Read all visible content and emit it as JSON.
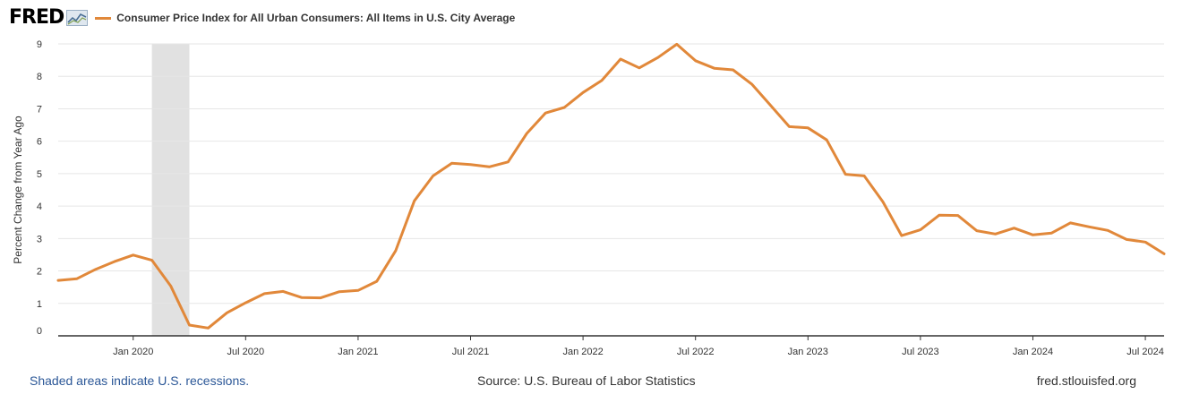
{
  "header": {
    "logo_text": "FRED",
    "logo_icon": "line-graph-icon",
    "legend_label": "Consumer Price Index for All Urban Consumers: All Items in U.S. City Average"
  },
  "footer": {
    "recession_note": "Shaded areas indicate U.S. recessions.",
    "source": "Source: U.S. Bureau of Labor Statistics",
    "site": "fred.stlouisfed.org"
  },
  "colors": {
    "series": "#e1883a",
    "recession": "#e1e1e1",
    "grid": "#e6e6e6",
    "axis": "#333333"
  },
  "chart_data": {
    "type": "line",
    "ylabel": "Percent Change from Year Ago",
    "ylim": [
      0,
      9
    ],
    "y_ticks": [
      0,
      1,
      2,
      3,
      4,
      5,
      6,
      7,
      8,
      9
    ],
    "x_ticks": [
      "Jan 2020",
      "Jul 2020",
      "Jan 2021",
      "Jul 2021",
      "Jan 2022",
      "Jul 2022",
      "Jan 2023",
      "Jul 2023",
      "Jan 2024",
      "Jul 2024"
    ],
    "grid": true,
    "recession_shading": {
      "start": "2020-02",
      "end": "2020-04"
    },
    "series": [
      {
        "x": [
          "2019-09",
          "2019-10",
          "2019-11",
          "2019-12",
          "2020-01",
          "2020-02",
          "2020-03",
          "2020-04",
          "2020-05",
          "2020-06",
          "2020-07",
          "2020-08",
          "2020-09",
          "2020-10",
          "2020-11",
          "2020-12",
          "2021-01",
          "2021-02",
          "2021-03",
          "2021-04",
          "2021-05",
          "2021-06",
          "2021-07",
          "2021-08",
          "2021-09",
          "2021-10",
          "2021-11",
          "2021-12",
          "2022-01",
          "2022-02",
          "2022-03",
          "2022-04",
          "2022-05",
          "2022-06",
          "2022-07",
          "2022-08",
          "2022-09",
          "2022-10",
          "2022-11",
          "2022-12",
          "2023-01",
          "2023-02",
          "2023-03",
          "2023-04",
          "2023-05",
          "2023-06",
          "2023-07",
          "2023-08",
          "2023-09",
          "2023-10",
          "2023-11",
          "2023-12",
          "2024-01",
          "2024-02",
          "2024-03",
          "2024-04",
          "2024-05",
          "2024-06",
          "2024-07",
          "2024-08"
        ],
        "values": [
          1.71,
          1.76,
          2.05,
          2.29,
          2.49,
          2.33,
          1.54,
          0.33,
          0.24,
          0.71,
          1.02,
          1.3,
          1.37,
          1.18,
          1.17,
          1.36,
          1.4,
          1.68,
          2.62,
          4.16,
          4.93,
          5.32,
          5.28,
          5.21,
          5.36,
          6.24,
          6.87,
          7.04,
          7.5,
          7.87,
          8.53,
          8.26,
          8.58,
          8.99,
          8.48,
          8.25,
          8.2,
          7.76,
          7.11,
          6.45,
          6.41,
          6.04,
          4.98,
          4.93,
          4.13,
          3.09,
          3.27,
          3.72,
          3.71,
          3.24,
          3.14,
          3.32,
          3.11,
          3.17,
          3.48,
          3.36,
          3.25,
          2.97,
          2.89,
          2.53
        ]
      }
    ]
  }
}
